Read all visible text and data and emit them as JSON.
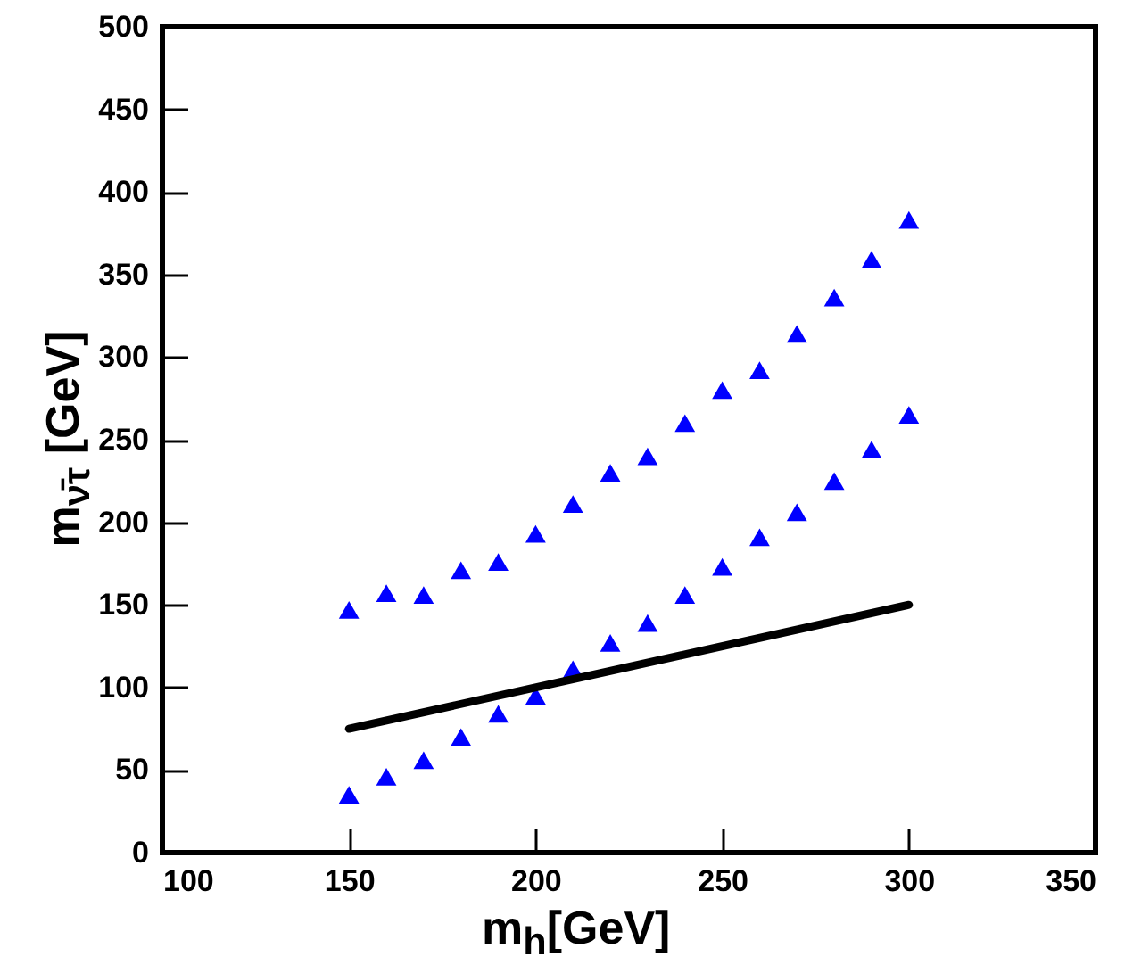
{
  "chart_data": {
    "type": "scatter",
    "xlabel": "m$_{h}$[GeV]",
    "ylabel": "m$_{ν̄τ}$ [GeV]",
    "xlim": [
      100,
      350
    ],
    "xticks": [
      100,
      150,
      200,
      250,
      300,
      350
    ],
    "ylim": [
      0,
      500
    ],
    "yticks": [
      0,
      50,
      100,
      150,
      200,
      250,
      300,
      350,
      400,
      450,
      500
    ],
    "grid": false,
    "marker": "triangle",
    "x": [
      150,
      160,
      170,
      180,
      190,
      200,
      210,
      220,
      230,
      240,
      250,
      260,
      270,
      280,
      290,
      300
    ],
    "series": [
      {
        "color": "#0000ff",
        "values": [
          147,
          157,
          156,
          171,
          176,
          193,
          211,
          230,
          240,
          260,
          280,
          292,
          314,
          336,
          359,
          383
        ]
      },
      {
        "color": "#0000ff",
        "values": [
          35,
          46,
          56,
          70,
          84,
          95,
          111,
          127,
          139,
          156,
          173,
          191,
          206,
          225,
          244,
          265
        ]
      },
      {
        "type": "line",
        "color": "#000000",
        "x": [
          150,
          300
        ],
        "values": [
          75,
          150
        ],
        "marker": "none",
        "line_style": "solid"
      }
    ]
  }
}
